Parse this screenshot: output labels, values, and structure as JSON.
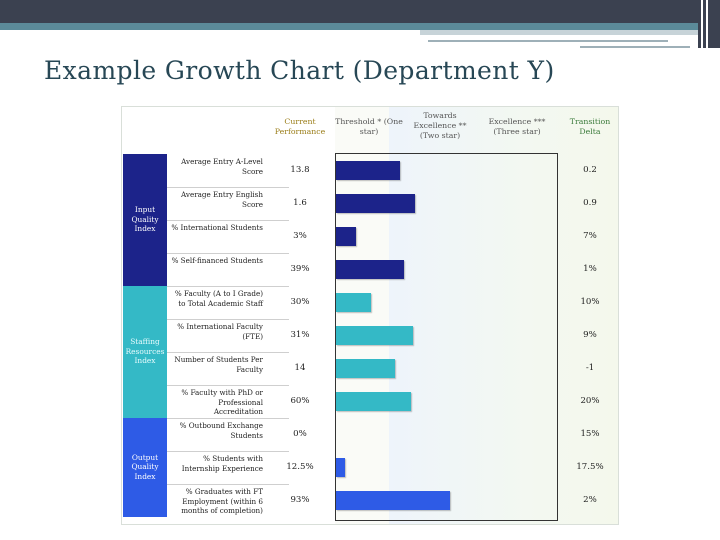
{
  "title": "Example Growth Chart (Department Y)",
  "colors": {
    "input": "#1c238a",
    "staffing": "#34b9c6",
    "output": "#2e5be6"
  },
  "chart_data": {
    "type": "bar",
    "orientation": "horizontal",
    "title": "Example Growth Chart (Department Y)",
    "headers": {
      "current": "Current Performance",
      "threshold": "Threshold * (One star)",
      "towards": "Towards Excellence ** (Two star)",
      "excellence": "Excellence *** (Three star)",
      "delta": "Transition Delta"
    },
    "groups": [
      {
        "name": "Input Quality Index",
        "color": "#1c238a",
        "rows": [
          0,
          1,
          2,
          3
        ]
      },
      {
        "name": "Staffing Resources Index",
        "color": "#34b9c6",
        "rows": [
          4,
          5,
          6,
          7
        ]
      },
      {
        "name": "Output Quality Index",
        "color": "#2e5be6",
        "rows": [
          8,
          9,
          10
        ]
      }
    ],
    "rows": [
      {
        "metric": "Average Entry A-Level Score",
        "current": "13.8",
        "delta": "0.2",
        "progress": 0.29
      },
      {
        "metric": "Average Entry English Score",
        "current": "1.6",
        "delta": "0.9",
        "progress": 0.36
      },
      {
        "metric": "% International Students",
        "current": "3%",
        "delta": "7%",
        "progress": 0.09
      },
      {
        "metric": "% Self-financed Students",
        "current": "39%",
        "delta": "1%",
        "progress": 0.31
      },
      {
        "metric": "% Faculty (A to I Grade) to Total Academic Staff",
        "current": "30%",
        "delta": "10%",
        "progress": 0.16
      },
      {
        "metric": "% International Faculty (FTE)",
        "current": "31%",
        "delta": "9%",
        "progress": 0.35
      },
      {
        "metric": "Number of Students Per Faculty",
        "current": "14",
        "delta": "-1",
        "progress": 0.27
      },
      {
        "metric": "% Faculty with PhD or Professional Accreditation",
        "current": "60%",
        "delta": "20%",
        "progress": 0.34
      },
      {
        "metric": "% Outbound Exchange Students",
        "current": "0%",
        "delta": "15%",
        "progress": 0.0
      },
      {
        "metric": "% Students with Internship Experience",
        "current": "12.5%",
        "delta": "17.5%",
        "progress": 0.04
      },
      {
        "metric": "% Graduates with FT Employment (within 6 months of completion)",
        "current": "93%",
        "delta": "2%",
        "progress": 0.52
      }
    ]
  }
}
